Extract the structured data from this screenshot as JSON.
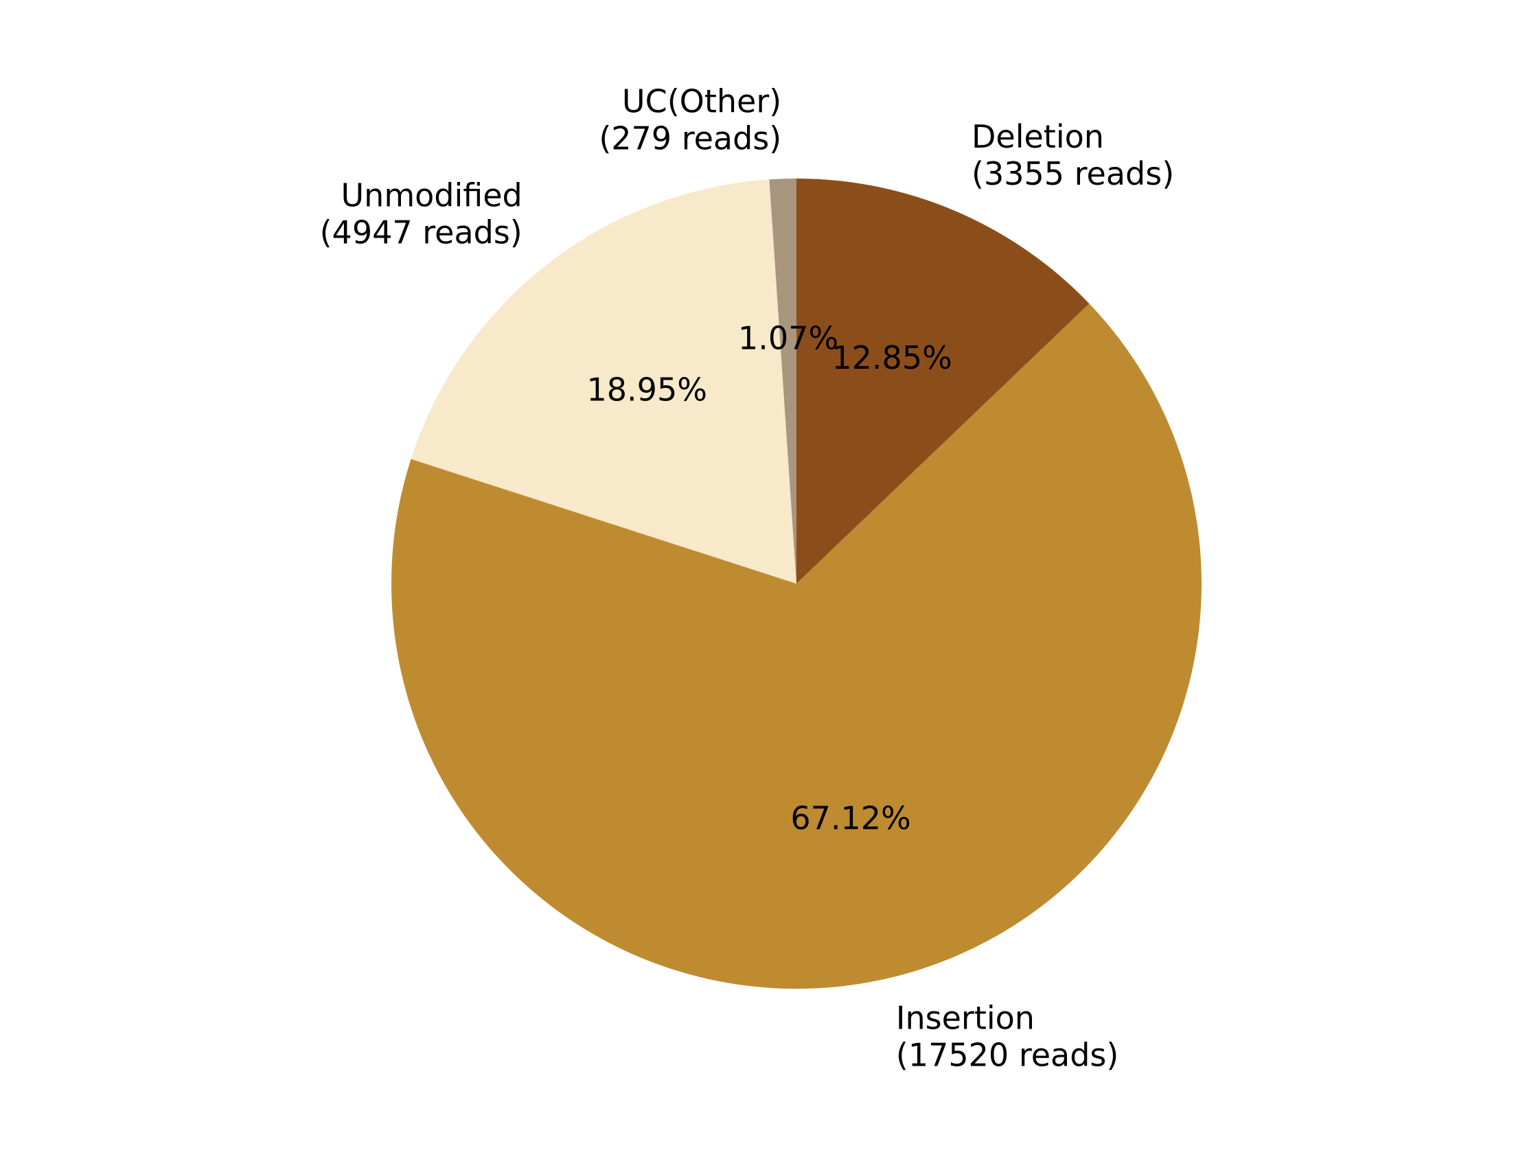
{
  "chart_data": {
    "type": "pie",
    "title": "",
    "start_angle": "12 o'clock",
    "direction": "clockwise",
    "slices": [
      {
        "category": "Deletion",
        "reads_label": "(3355 reads)",
        "reads": 3355,
        "percent": 12.85,
        "percent_label": "12.85%",
        "color": "#8B4E1B"
      },
      {
        "category": "Insertion",
        "reads_label": "(17520 reads)",
        "reads": 17520,
        "percent": 67.12,
        "percent_label": "67.12%",
        "color": "#BF8B31"
      },
      {
        "category": "Unmodified",
        "reads_label": "(4947 reads)",
        "reads": 4947,
        "percent": 18.95,
        "percent_label": "18.95%",
        "color": "#F8E9CA"
      },
      {
        "category": "UC(Other)",
        "reads_label": "(279 reads)",
        "reads": 279,
        "percent": 1.07,
        "percent_label": "1.07%",
        "color": "#A8967E"
      }
    ]
  }
}
